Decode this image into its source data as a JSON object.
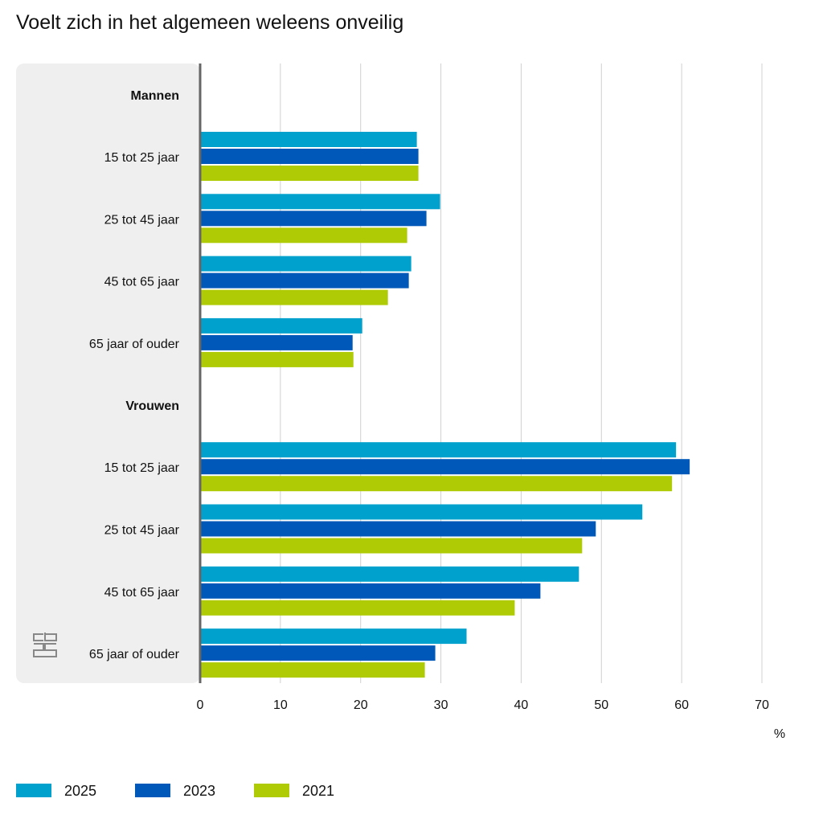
{
  "chart_data": {
    "type": "bar",
    "orientation": "horizontal",
    "title": "Voelt zich in het algemeen weleens onveilig",
    "xlabel": "%",
    "xlim": [
      0,
      70
    ],
    "xticks": [
      "0",
      "10",
      "20",
      "30",
      "40",
      "50",
      "60",
      "70"
    ],
    "grid": true,
    "legend_position": "bottom-left",
    "groups": [
      {
        "name": "Mannen",
        "categories": [
          "15 tot 25 jaar",
          "25 tot 45 jaar",
          "45 tot 65 jaar",
          "65 jaar of ouder"
        ]
      },
      {
        "name": "Vrouwen",
        "categories": [
          "15 tot 25 jaar",
          "25 tot 45 jaar",
          "45 tot 65 jaar",
          "65 jaar of ouder"
        ]
      }
    ],
    "series": [
      {
        "name": "2025",
        "color": "#00a1cd",
        "values": [
          [
            27.0,
            29.9,
            26.3,
            20.2
          ],
          [
            59.3,
            55.1,
            47.2,
            33.2
          ]
        ]
      },
      {
        "name": "2023",
        "color": "#0058b8",
        "values": [
          [
            27.2,
            28.2,
            26.0,
            19.0
          ],
          [
            61.0,
            49.3,
            42.4,
            29.3
          ]
        ]
      },
      {
        "name": "2021",
        "color": "#afcb05",
        "values": [
          [
            27.2,
            25.8,
            23.4,
            19.1
          ],
          [
            58.8,
            47.6,
            39.2,
            28.0
          ]
        ]
      }
    ]
  }
}
